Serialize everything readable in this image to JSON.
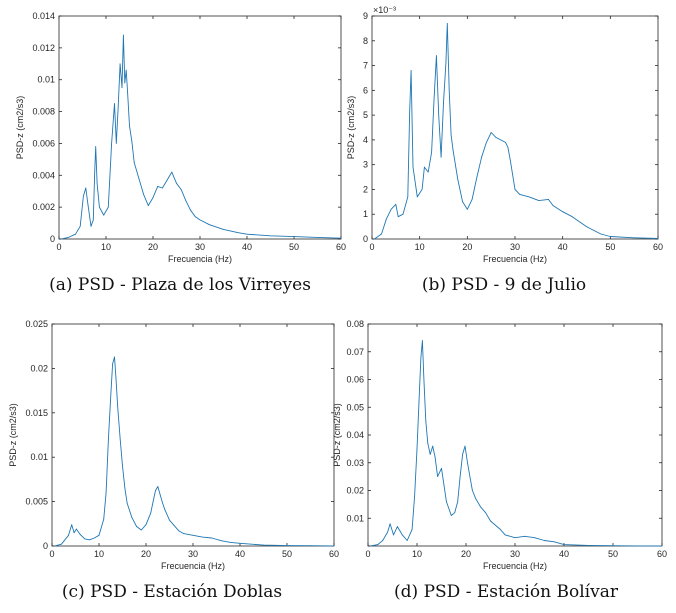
{
  "figure": {
    "line_color": "#1f77b4"
  },
  "chart_data": [
    {
      "type": "line",
      "id": "a",
      "caption": "(a) PSD - Plaza de los Virreyes",
      "xlabel": "Frecuencia (Hz)",
      "ylabel": "PSD-z (cm2/s3)",
      "xlim": [
        0,
        60
      ],
      "ylim": [
        0,
        0.014
      ],
      "xticks": [
        "0",
        "10",
        "20",
        "30",
        "40",
        "50",
        "60"
      ],
      "yticks": [
        "0",
        "0.002",
        "0.004",
        "0.006",
        "0.008",
        "0.01",
        "0.012",
        "0.014"
      ],
      "multiplier": "",
      "series": [
        {
          "name": "PSD-z",
          "x": [
            0.5,
            2,
            3.5,
            4.5,
            5.2,
            5.7,
            6.2,
            6.8,
            7.3,
            7.6,
            7.8,
            8.1,
            8.6,
            9.5,
            10.5,
            11.2,
            11.8,
            12.2,
            12.6,
            13,
            13.4,
            13.7,
            14,
            14.3,
            14.6,
            15,
            15.5,
            16,
            17,
            18,
            19,
            20,
            21,
            22,
            23,
            24,
            25,
            26,
            27,
            28,
            29,
            30,
            32,
            35,
            38,
            40,
            45,
            50,
            55,
            60
          ],
          "values": [
            0.0,
            0.0001,
            0.0003,
            0.0008,
            0.0027,
            0.0032,
            0.0021,
            0.0008,
            0.0012,
            0.0042,
            0.0058,
            0.0035,
            0.002,
            0.0015,
            0.002,
            0.006,
            0.0085,
            0.006,
            0.0083,
            0.011,
            0.0095,
            0.0128,
            0.0098,
            0.0106,
            0.0092,
            0.0071,
            0.0061,
            0.0048,
            0.0038,
            0.0028,
            0.0021,
            0.0026,
            0.0033,
            0.0032,
            0.0037,
            0.0042,
            0.0035,
            0.0031,
            0.0024,
            0.0018,
            0.0014,
            0.0012,
            0.0009,
            0.0006,
            0.0004,
            0.0003,
            0.0002,
            0.00015,
            0.0001,
            5e-05
          ]
        }
      ]
    },
    {
      "type": "line",
      "id": "b",
      "caption": "(b) PSD - 9 de Julio",
      "xlabel": "Frecuencia (Hz)",
      "ylabel": "PSD-z (cm2/s3)",
      "xlim": [
        0,
        60
      ],
      "ylim": [
        0,
        9
      ],
      "xticks": [
        "0",
        "10",
        "20",
        "30",
        "40",
        "50",
        "60"
      ],
      "yticks": [
        "0",
        "1",
        "2",
        "3",
        "4",
        "5",
        "6",
        "7",
        "8",
        "9"
      ],
      "multiplier": "×10⁻³",
      "series": [
        {
          "name": "PSD-z",
          "x": [
            0.5,
            2,
            3,
            4,
            5,
            5.5,
            6.5,
            7.5,
            7.9,
            8.2,
            8.6,
            9.5,
            10.5,
            11,
            11.8,
            12.5,
            13,
            13.5,
            14,
            14.5,
            15,
            15.5,
            15.8,
            16.2,
            16.6,
            17,
            17.5,
            18,
            19,
            20,
            21,
            22,
            23,
            24,
            25,
            26,
            27,
            28,
            28.5,
            29,
            30,
            31,
            33,
            35,
            37,
            38,
            40,
            42,
            45,
            48,
            50,
            55,
            60
          ],
          "values": [
            0.0,
            0.2,
            0.8,
            1.2,
            1.4,
            0.9,
            1.0,
            1.7,
            5.2,
            6.8,
            2.9,
            1.7,
            2.0,
            2.9,
            2.7,
            3.5,
            5.6,
            7.4,
            5.0,
            3.3,
            5.5,
            7.1,
            8.7,
            6.0,
            4.2,
            3.6,
            3.0,
            2.4,
            1.5,
            1.2,
            1.6,
            2.5,
            3.3,
            3.9,
            4.3,
            4.1,
            4.0,
            3.9,
            3.7,
            3.2,
            2.0,
            1.8,
            1.7,
            1.55,
            1.6,
            1.35,
            1.1,
            0.9,
            0.5,
            0.2,
            0.1,
            0.05,
            0.02
          ]
        }
      ]
    },
    {
      "type": "line",
      "id": "c",
      "caption": "(c) PSD - Estación Doblas",
      "xlabel": "Frecuencia (Hz)",
      "ylabel": "PSD-z (cm2/s3)",
      "xlim": [
        0,
        60
      ],
      "ylim": [
        0,
        0.025
      ],
      "xticks": [
        "0",
        "10",
        "20",
        "30",
        "40",
        "50",
        "60"
      ],
      "yticks": [
        "0",
        "0.005",
        "0.01",
        "0.015",
        "0.02",
        "0.025"
      ],
      "multiplier": "",
      "series": [
        {
          "name": "PSD-z",
          "x": [
            0.5,
            2,
            3.5,
            4.2,
            4.7,
            5.2,
            6,
            7,
            8,
            9,
            10,
            11,
            11.5,
            12,
            12.5,
            12.9,
            13.3,
            13.6,
            14,
            14.5,
            15,
            15.5,
            16,
            17,
            18,
            19,
            20,
            21,
            21.5,
            22,
            22.5,
            23,
            23.5,
            24,
            25,
            26,
            27,
            28,
            30,
            32,
            34,
            36,
            38,
            40,
            45,
            50,
            55,
            60
          ],
          "values": [
            0.0,
            0.0002,
            0.0012,
            0.0024,
            0.0015,
            0.0019,
            0.0013,
            0.0008,
            0.0007,
            0.0009,
            0.0012,
            0.003,
            0.006,
            0.012,
            0.017,
            0.0205,
            0.0213,
            0.019,
            0.0155,
            0.012,
            0.009,
            0.0065,
            0.0048,
            0.0032,
            0.0022,
            0.0018,
            0.0024,
            0.0037,
            0.005,
            0.0062,
            0.0067,
            0.0058,
            0.0049,
            0.0041,
            0.0029,
            0.0023,
            0.0017,
            0.0014,
            0.0012,
            0.001,
            0.0009,
            0.0006,
            0.0004,
            0.0003,
            0.0001,
            5e-05,
            3e-05,
            1e-05
          ]
        }
      ]
    },
    {
      "type": "line",
      "id": "d",
      "caption": "(d) PSD - Estación Bolívar",
      "xlabel": "Frecuencia (Hz)",
      "ylabel": "PSD-z (cm2/s3)",
      "xlim": [
        0,
        60
      ],
      "ylim": [
        0,
        0.08
      ],
      "xticks": [
        "0",
        "10",
        "20",
        "30",
        "40",
        "50",
        "60"
      ],
      "yticks": [
        "",
        "0.01",
        "0.02",
        "0.03",
        "0.04",
        "0.05",
        "0.06",
        "0.07",
        "0.08"
      ],
      "multiplier": "",
      "series": [
        {
          "name": "PSD-z",
          "x": [
            0.5,
            2,
            3,
            4,
            4.5,
            5.2,
            6,
            7,
            8,
            9,
            9.5,
            10,
            10.4,
            10.8,
            11.1,
            11.4,
            11.8,
            12.2,
            12.7,
            13.2,
            13.7,
            14.2,
            15,
            16,
            17,
            17.7,
            18.3,
            18.8,
            19.3,
            19.8,
            20.3,
            20.8,
            21.3,
            22,
            23,
            24,
            25,
            27,
            28,
            30,
            32,
            34,
            36,
            38,
            40,
            45,
            50,
            55,
            60
          ],
          "values": [
            0.0,
            0.0005,
            0.002,
            0.005,
            0.008,
            0.004,
            0.007,
            0.004,
            0.002,
            0.006,
            0.018,
            0.035,
            0.052,
            0.068,
            0.074,
            0.06,
            0.045,
            0.037,
            0.033,
            0.036,
            0.032,
            0.025,
            0.028,
            0.016,
            0.011,
            0.012,
            0.016,
            0.025,
            0.033,
            0.036,
            0.03,
            0.025,
            0.02,
            0.017,
            0.014,
            0.012,
            0.009,
            0.006,
            0.004,
            0.003,
            0.0035,
            0.003,
            0.002,
            0.0015,
            0.0005,
            0.0002,
            0.0001,
            5e-05,
            2e-05
          ]
        }
      ]
    }
  ]
}
